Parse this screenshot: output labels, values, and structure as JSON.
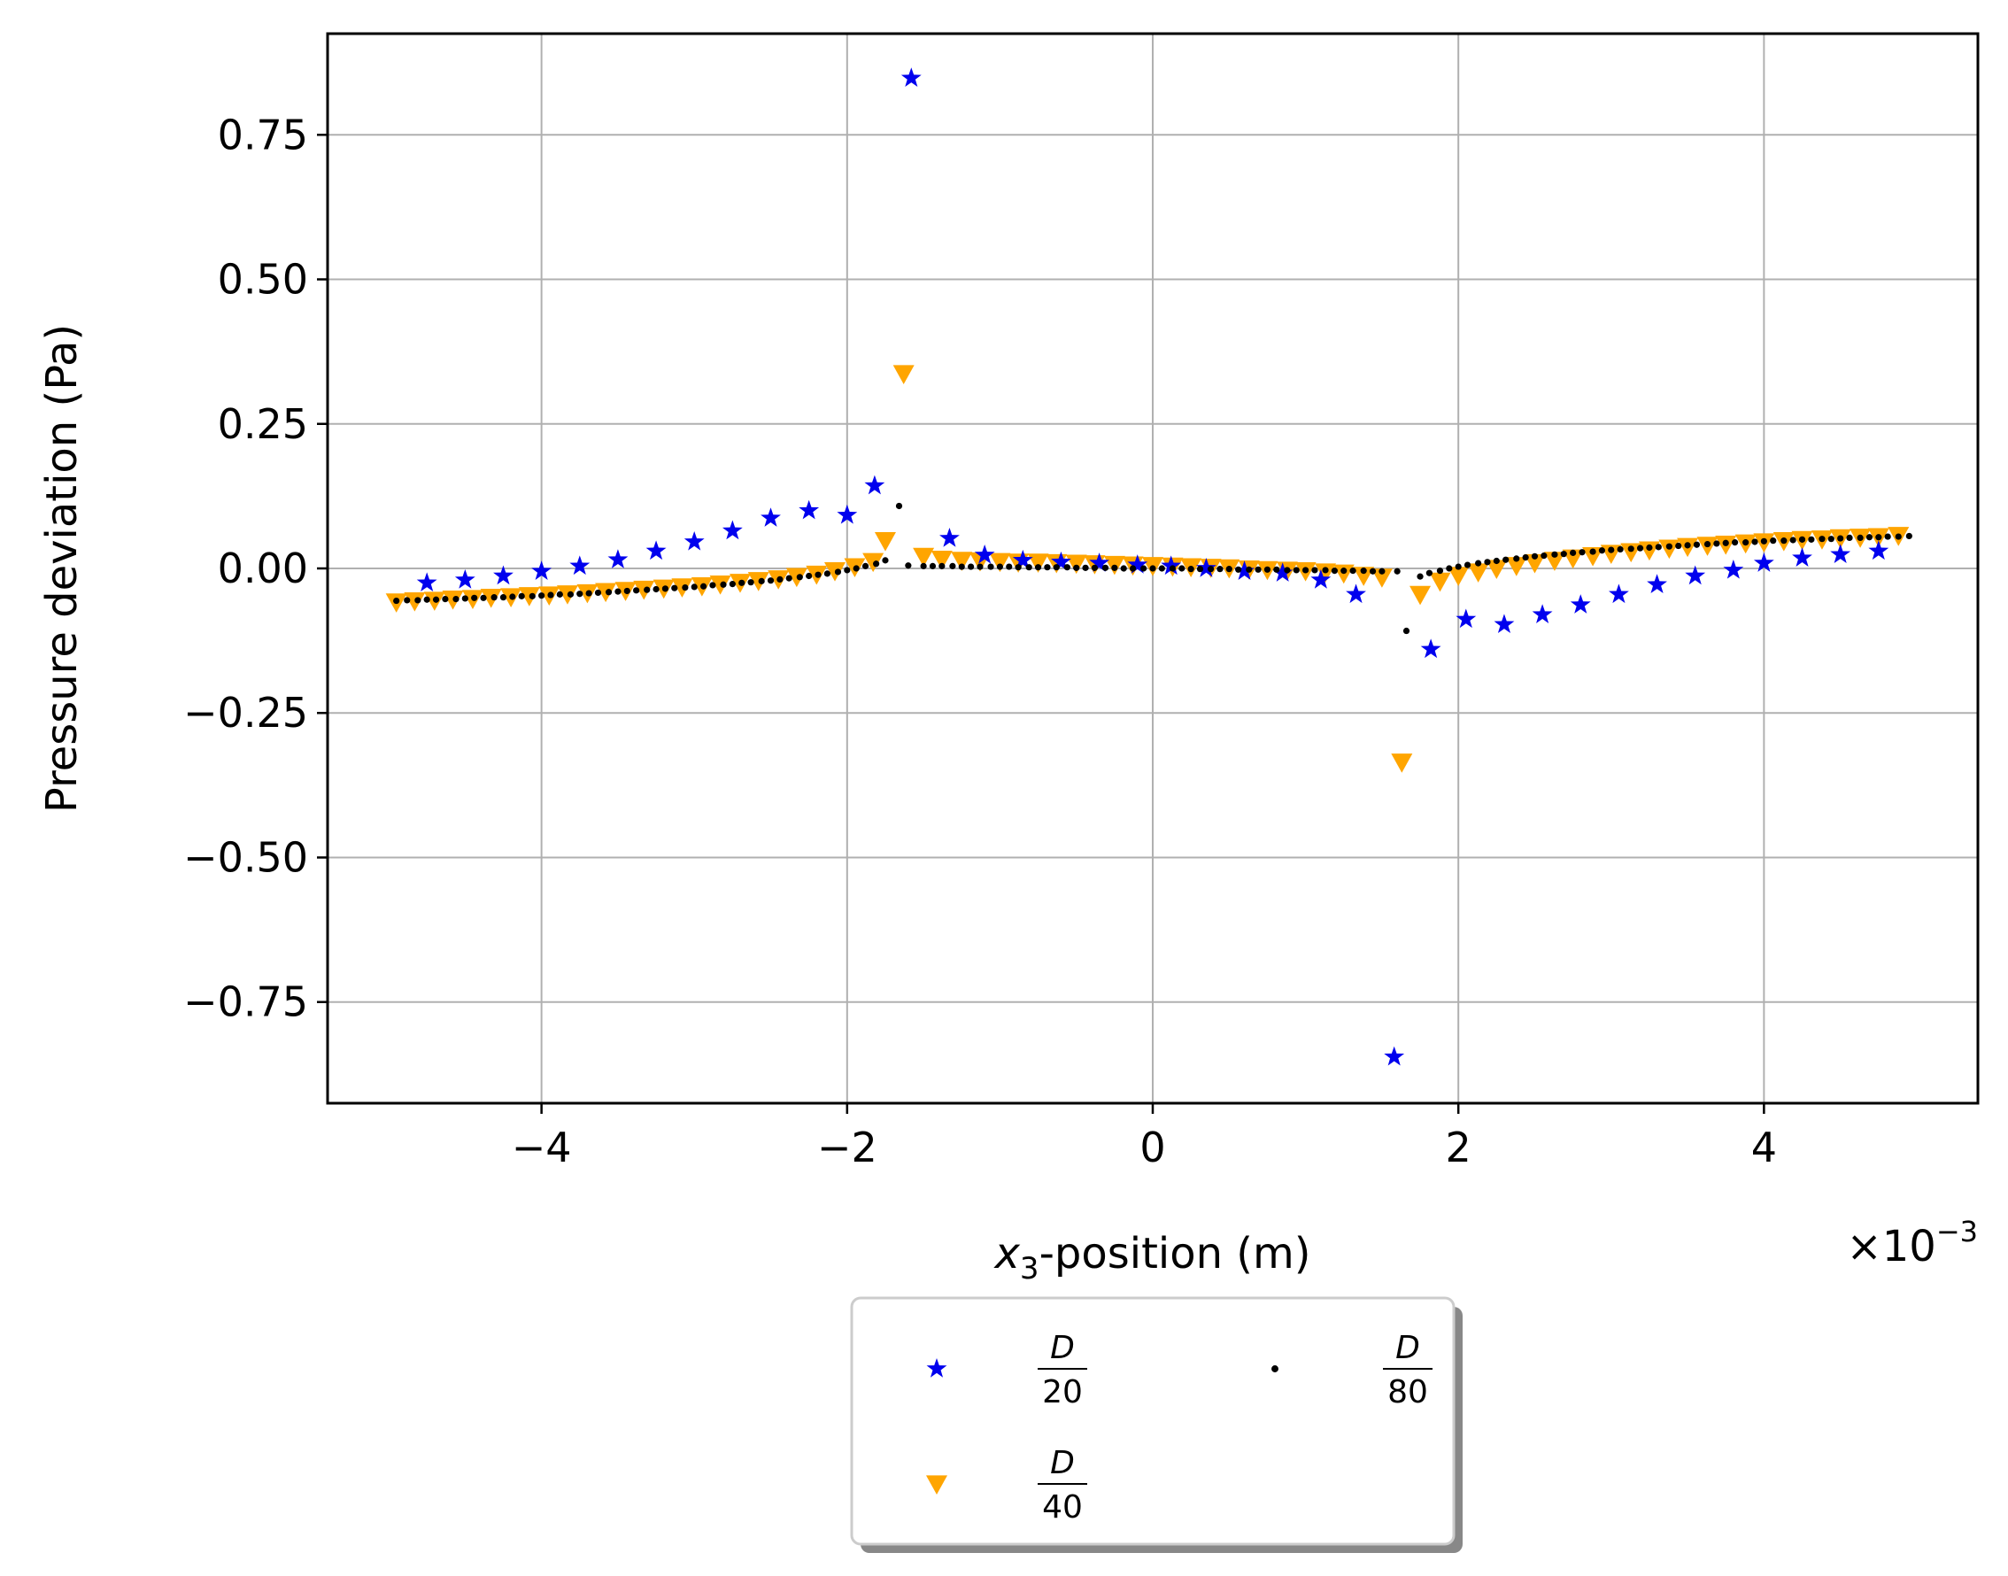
{
  "chart_data": {
    "type": "scatter",
    "title": "",
    "xlabel": {
      "var": "x",
      "sub": "3",
      "suffix": "-position (m)"
    },
    "ylabel": "Pressure deviation (Pa)",
    "x_offset_label": {
      "prefix": "×10",
      "exp": "−3"
    },
    "xlim": [
      -5.4,
      5.4
    ],
    "ylim": [
      -0.925,
      0.925
    ],
    "grid": true,
    "xticks": [
      {
        "value": -4,
        "label": "−4"
      },
      {
        "value": -2,
        "label": "−2"
      },
      {
        "value": 0,
        "label": "0"
      },
      {
        "value": 2,
        "label": "2"
      },
      {
        "value": 4,
        "label": "4"
      }
    ],
    "yticks": [
      {
        "value": 0.75,
        "label": "0.75"
      },
      {
        "value": 0.5,
        "label": "0.50"
      },
      {
        "value": 0.25,
        "label": "0.25"
      },
      {
        "value": 0,
        "label": "0.00"
      },
      {
        "value": -0.25,
        "label": "−0.25"
      },
      {
        "value": -0.5,
        "label": "−0.50"
      },
      {
        "value": -0.75,
        "label": "−0.75"
      }
    ],
    "legend": {
      "placement": "below-center",
      "columns": 2,
      "frame": true,
      "shadow": true
    },
    "series": [
      {
        "name": {
          "num": "D",
          "den": "20"
        },
        "color": "#0000ee",
        "marker": "star",
        "points": [
          [
            -4.75,
            -0.025
          ],
          [
            -4.5,
            -0.02
          ],
          [
            -4.25,
            -0.013
          ],
          [
            -4.0,
            -0.005
          ],
          [
            -3.75,
            0.004
          ],
          [
            -3.5,
            0.015
          ],
          [
            -3.25,
            0.03
          ],
          [
            -3.0,
            0.046
          ],
          [
            -2.75,
            0.065
          ],
          [
            -2.5,
            0.087
          ],
          [
            -2.25,
            0.1
          ],
          [
            -2.0,
            0.092
          ],
          [
            -1.82,
            0.143
          ],
          [
            -1.58,
            0.848
          ],
          [
            -1.33,
            0.052
          ],
          [
            -1.1,
            0.023
          ],
          [
            -0.85,
            0.014
          ],
          [
            -0.6,
            0.011
          ],
          [
            -0.35,
            0.009
          ],
          [
            -0.1,
            0.006
          ],
          [
            0.12,
            0.004
          ],
          [
            0.35,
            0.0
          ],
          [
            0.6,
            -0.005
          ],
          [
            0.85,
            -0.008
          ],
          [
            1.1,
            -0.02
          ],
          [
            1.33,
            -0.045
          ],
          [
            1.58,
            -0.845
          ],
          [
            1.82,
            -0.14
          ],
          [
            2.05,
            -0.088
          ],
          [
            2.3,
            -0.097
          ],
          [
            2.55,
            -0.08
          ],
          [
            2.8,
            -0.063
          ],
          [
            3.05,
            -0.045
          ],
          [
            3.3,
            -0.028
          ],
          [
            3.55,
            -0.013
          ],
          [
            3.8,
            -0.003
          ],
          [
            4.0,
            0.009
          ],
          [
            4.25,
            0.018
          ],
          [
            4.5,
            0.024
          ],
          [
            4.75,
            0.03
          ]
        ]
      },
      {
        "name": {
          "num": "D",
          "den": "40"
        },
        "color": "#ffa500",
        "marker": "triangle-down",
        "points": [
          [
            -4.95,
            -0.058
          ],
          [
            -4.83,
            -0.056
          ],
          [
            -4.7,
            -0.055
          ],
          [
            -4.58,
            -0.053
          ],
          [
            -4.45,
            -0.052
          ],
          [
            -4.33,
            -0.05
          ],
          [
            -4.2,
            -0.049
          ],
          [
            -4.08,
            -0.047
          ],
          [
            -3.95,
            -0.046
          ],
          [
            -3.83,
            -0.044
          ],
          [
            -3.7,
            -0.042
          ],
          [
            -3.58,
            -0.04
          ],
          [
            -3.45,
            -0.038
          ],
          [
            -3.33,
            -0.036
          ],
          [
            -3.2,
            -0.034
          ],
          [
            -3.08,
            -0.032
          ],
          [
            -2.95,
            -0.03
          ],
          [
            -2.83,
            -0.027
          ],
          [
            -2.7,
            -0.024
          ],
          [
            -2.58,
            -0.021
          ],
          [
            -2.45,
            -0.018
          ],
          [
            -2.33,
            -0.014
          ],
          [
            -2.2,
            -0.01
          ],
          [
            -2.08,
            -0.004
          ],
          [
            -1.95,
            0.003
          ],
          [
            -1.83,
            0.012
          ],
          [
            -1.75,
            0.048
          ],
          [
            -1.63,
            0.337
          ],
          [
            -1.5,
            0.021
          ],
          [
            -1.38,
            0.016
          ],
          [
            -1.25,
            0.014
          ],
          [
            -1.13,
            0.013
          ],
          [
            -1.0,
            0.012
          ],
          [
            -0.88,
            0.011
          ],
          [
            -0.75,
            0.011
          ],
          [
            -0.63,
            0.01
          ],
          [
            -0.5,
            0.009
          ],
          [
            -0.38,
            0.008
          ],
          [
            -0.25,
            0.007
          ],
          [
            -0.13,
            0.006
          ],
          [
            0.0,
            0.005
          ],
          [
            0.13,
            0.004
          ],
          [
            0.25,
            0.003
          ],
          [
            0.38,
            0.002
          ],
          [
            0.5,
            0.001
          ],
          [
            0.63,
            -0.001
          ],
          [
            0.75,
            -0.002
          ],
          [
            0.88,
            -0.003
          ],
          [
            1.0,
            -0.004
          ],
          [
            1.13,
            -0.006
          ],
          [
            1.25,
            -0.008
          ],
          [
            1.38,
            -0.012
          ],
          [
            1.5,
            -0.015
          ],
          [
            1.63,
            -0.335
          ],
          [
            1.75,
            -0.045
          ],
          [
            1.88,
            -0.022
          ],
          [
            2.0,
            -0.012
          ],
          [
            2.13,
            -0.006
          ],
          [
            2.25,
            0.0
          ],
          [
            2.38,
            0.005
          ],
          [
            2.5,
            0.01
          ],
          [
            2.63,
            0.014
          ],
          [
            2.75,
            0.018
          ],
          [
            2.88,
            0.022
          ],
          [
            3.0,
            0.026
          ],
          [
            3.13,
            0.029
          ],
          [
            3.25,
            0.032
          ],
          [
            3.38,
            0.035
          ],
          [
            3.5,
            0.038
          ],
          [
            3.63,
            0.04
          ],
          [
            3.75,
            0.042
          ],
          [
            3.88,
            0.044
          ],
          [
            4.0,
            0.046
          ],
          [
            4.13,
            0.048
          ],
          [
            4.25,
            0.05
          ],
          [
            4.38,
            0.051
          ],
          [
            4.5,
            0.053
          ],
          [
            4.63,
            0.054
          ],
          [
            4.75,
            0.055
          ],
          [
            4.88,
            0.057
          ]
        ]
      },
      {
        "name": {
          "num": "D",
          "den": "80"
        },
        "color": "#000000",
        "marker": "point",
        "points": [
          [
            -4.95,
            -0.056
          ],
          [
            -4.88,
            -0.055
          ],
          [
            -4.81,
            -0.055
          ],
          [
            -4.75,
            -0.054
          ],
          [
            -4.69,
            -0.054
          ],
          [
            -4.63,
            -0.053
          ],
          [
            -4.56,
            -0.053
          ],
          [
            -4.5,
            -0.052
          ],
          [
            -4.44,
            -0.051
          ],
          [
            -4.38,
            -0.051
          ],
          [
            -4.31,
            -0.05
          ],
          [
            -4.25,
            -0.05
          ],
          [
            -4.19,
            -0.049
          ],
          [
            -4.13,
            -0.048
          ],
          [
            -4.06,
            -0.048
          ],
          [
            -4.0,
            -0.047
          ],
          [
            -3.94,
            -0.046
          ],
          [
            -3.88,
            -0.045
          ],
          [
            -3.81,
            -0.045
          ],
          [
            -3.75,
            -0.044
          ],
          [
            -3.69,
            -0.043
          ],
          [
            -3.63,
            -0.042
          ],
          [
            -3.56,
            -0.041
          ],
          [
            -3.5,
            -0.04
          ],
          [
            -3.44,
            -0.039
          ],
          [
            -3.38,
            -0.038
          ],
          [
            -3.31,
            -0.037
          ],
          [
            -3.25,
            -0.036
          ],
          [
            -3.19,
            -0.035
          ],
          [
            -3.13,
            -0.034
          ],
          [
            -3.06,
            -0.033
          ],
          [
            -3.0,
            -0.032
          ],
          [
            -2.94,
            -0.031
          ],
          [
            -2.88,
            -0.029
          ],
          [
            -2.81,
            -0.028
          ],
          [
            -2.75,
            -0.027
          ],
          [
            -2.69,
            -0.025
          ],
          [
            -2.63,
            -0.024
          ],
          [
            -2.56,
            -0.022
          ],
          [
            -2.5,
            -0.021
          ],
          [
            -2.44,
            -0.019
          ],
          [
            -2.38,
            -0.017
          ],
          [
            -2.31,
            -0.015
          ],
          [
            -2.25,
            -0.013
          ],
          [
            -2.19,
            -0.011
          ],
          [
            -2.13,
            -0.009
          ],
          [
            -2.06,
            -0.006
          ],
          [
            -2.0,
            -0.003
          ],
          [
            -1.94,
            0.0
          ],
          [
            -1.88,
            0.004
          ],
          [
            -1.81,
            0.008
          ],
          [
            -1.75,
            0.014
          ],
          [
            -1.66,
            0.108
          ],
          [
            -1.6,
            0.005
          ],
          [
            -1.5,
            0.004
          ],
          [
            -1.44,
            0.004
          ],
          [
            -1.38,
            0.004
          ],
          [
            -1.31,
            0.004
          ],
          [
            -1.25,
            0.003
          ],
          [
            -1.19,
            0.003
          ],
          [
            -1.13,
            0.003
          ],
          [
            -1.06,
            0.003
          ],
          [
            -1.0,
            0.003
          ],
          [
            -0.94,
            0.003
          ],
          [
            -0.88,
            0.002
          ],
          [
            -0.81,
            0.002
          ],
          [
            -0.75,
            0.002
          ],
          [
            -0.69,
            0.002
          ],
          [
            -0.63,
            0.002
          ],
          [
            -0.56,
            0.002
          ],
          [
            -0.5,
            0.001
          ],
          [
            -0.44,
            0.001
          ],
          [
            -0.38,
            0.001
          ],
          [
            -0.31,
            0.001
          ],
          [
            -0.25,
            0.001
          ],
          [
            -0.19,
            0.0
          ],
          [
            -0.13,
            0.0
          ],
          [
            -0.06,
            0.0
          ],
          [
            0.0,
            0.0
          ],
          [
            0.06,
            0.0
          ],
          [
            0.13,
            0.0
          ],
          [
            0.19,
            0.0
          ],
          [
            0.25,
            -0.001
          ],
          [
            0.31,
            -0.001
          ],
          [
            0.38,
            -0.001
          ],
          [
            0.44,
            -0.001
          ],
          [
            0.5,
            -0.001
          ],
          [
            0.56,
            -0.002
          ],
          [
            0.63,
            -0.002
          ],
          [
            0.69,
            -0.002
          ],
          [
            0.75,
            -0.002
          ],
          [
            0.81,
            -0.002
          ],
          [
            0.88,
            -0.003
          ],
          [
            0.94,
            -0.003
          ],
          [
            1.0,
            -0.003
          ],
          [
            1.06,
            -0.003
          ],
          [
            1.13,
            -0.003
          ],
          [
            1.19,
            -0.004
          ],
          [
            1.25,
            -0.004
          ],
          [
            1.31,
            -0.004
          ],
          [
            1.38,
            -0.004
          ],
          [
            1.44,
            -0.005
          ],
          [
            1.5,
            -0.005
          ],
          [
            1.6,
            -0.005
          ],
          [
            1.66,
            -0.108
          ],
          [
            1.75,
            -0.014
          ],
          [
            1.81,
            -0.008
          ],
          [
            1.88,
            -0.004
          ],
          [
            1.94,
            0.0
          ],
          [
            2.0,
            0.003
          ],
          [
            2.06,
            0.006
          ],
          [
            2.13,
            0.009
          ],
          [
            2.19,
            0.011
          ],
          [
            2.25,
            0.013
          ],
          [
            2.31,
            0.015
          ],
          [
            2.38,
            0.017
          ],
          [
            2.44,
            0.019
          ],
          [
            2.5,
            0.021
          ],
          [
            2.56,
            0.022
          ],
          [
            2.63,
            0.024
          ],
          [
            2.69,
            0.025
          ],
          [
            2.75,
            0.027
          ],
          [
            2.81,
            0.028
          ],
          [
            2.88,
            0.029
          ],
          [
            2.94,
            0.031
          ],
          [
            3.0,
            0.032
          ],
          [
            3.06,
            0.033
          ],
          [
            3.13,
            0.034
          ],
          [
            3.19,
            0.035
          ],
          [
            3.25,
            0.036
          ],
          [
            3.31,
            0.037
          ],
          [
            3.38,
            0.038
          ],
          [
            3.44,
            0.039
          ],
          [
            3.5,
            0.04
          ],
          [
            3.56,
            0.041
          ],
          [
            3.63,
            0.042
          ],
          [
            3.69,
            0.043
          ],
          [
            3.75,
            0.044
          ],
          [
            3.81,
            0.045
          ],
          [
            3.88,
            0.045
          ],
          [
            3.94,
            0.046
          ],
          [
            4.0,
            0.047
          ],
          [
            4.06,
            0.048
          ],
          [
            4.13,
            0.048
          ],
          [
            4.19,
            0.049
          ],
          [
            4.25,
            0.05
          ],
          [
            4.31,
            0.05
          ],
          [
            4.38,
            0.051
          ],
          [
            4.44,
            0.051
          ],
          [
            4.5,
            0.052
          ],
          [
            4.56,
            0.053
          ],
          [
            4.63,
            0.053
          ],
          [
            4.69,
            0.054
          ],
          [
            4.75,
            0.054
          ],
          [
            4.81,
            0.055
          ],
          [
            4.88,
            0.055
          ],
          [
            4.95,
            0.056
          ]
        ]
      }
    ]
  }
}
